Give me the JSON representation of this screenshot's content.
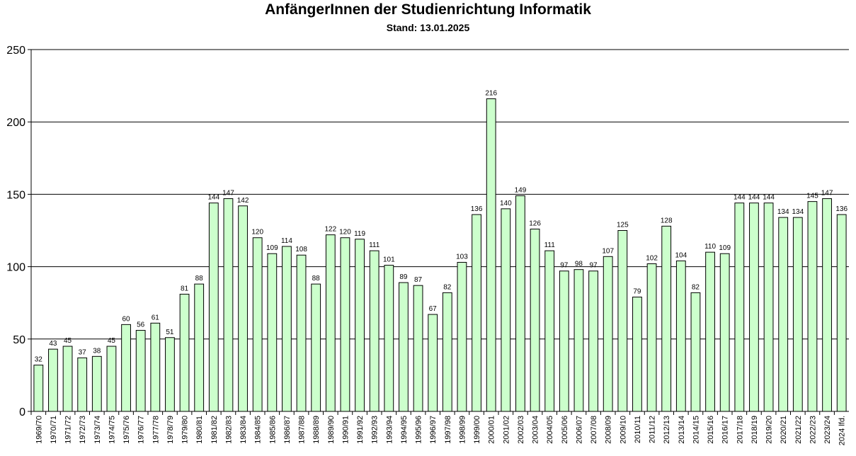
{
  "chart_data": {
    "type": "bar",
    "title": "AnfängerInnen der Studienrichtung Informatik",
    "subtitle": "Stand: 13.01.2025",
    "xlabel": "",
    "ylabel": "",
    "ylim": [
      0,
      250
    ],
    "yticks": [
      0,
      50,
      100,
      150,
      200,
      250
    ],
    "grid": true,
    "legend": "none",
    "bar_color": "#ccffcc",
    "bar_edge_color": "#000000",
    "categories": [
      "1969/70",
      "1970/71",
      "1971/72",
      "1972/73",
      "1973/74",
      "1974/75",
      "1975/76",
      "1976/77",
      "1977/78",
      "1978/79",
      "1979/80",
      "1980/81",
      "1981/82",
      "1982/83",
      "1983/84",
      "1984/85",
      "1985/86",
      "1986/87",
      "1987/88",
      "1988/89",
      "1989/90",
      "1990/91",
      "1991/92",
      "1992/93",
      "1993/94",
      "1994/95",
      "1995/96",
      "1996/97",
      "1997/98",
      "1998/99",
      "1999/00",
      "2000/01",
      "2001/02",
      "2002/03",
      "2003/04",
      "2004/05",
      "2005/06",
      "2006/07",
      "2007/08",
      "2008/09",
      "2009/10",
      "2010/11",
      "2011/12",
      "2012/13",
      "2013/14",
      "2014/15",
      "2015/16",
      "2016/17",
      "2017/18",
      "2018/19",
      "2019/20",
      "2020/21",
      "2021/22",
      "2022/23",
      "2023/24",
      "2024 lfd."
    ],
    "values": [
      32,
      43,
      45,
      37,
      38,
      45,
      60,
      56,
      61,
      51,
      81,
      88,
      144,
      147,
      142,
      120,
      109,
      114,
      108,
      88,
      122,
      120,
      119,
      111,
      101,
      89,
      87,
      67,
      82,
      103,
      136,
      216,
      140,
      149,
      126,
      111,
      97,
      98,
      97,
      107,
      125,
      79,
      102,
      128,
      104,
      82,
      110,
      109,
      144,
      144,
      144,
      134,
      134,
      145,
      147,
      136
    ]
  }
}
